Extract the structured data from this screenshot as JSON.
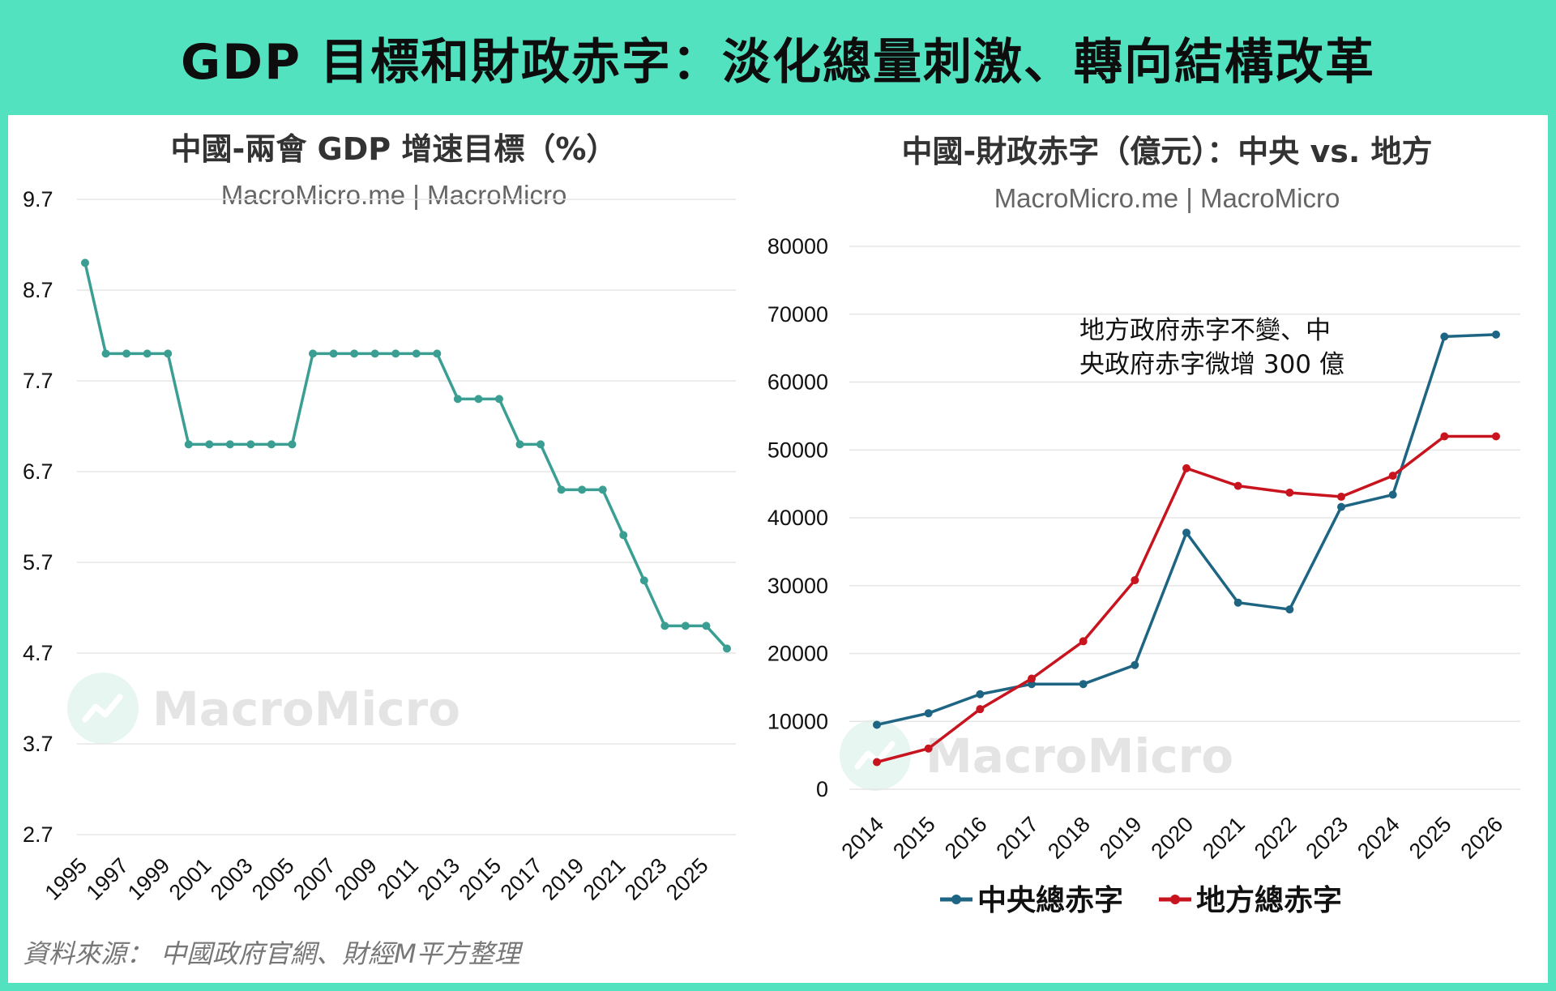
{
  "header": {
    "title": "GDP 目標和財政赤字：淡化總量刺激、轉向結構改革"
  },
  "charts": {
    "left": {
      "title": "中國-兩會 GDP 增速目標（%）",
      "subtitle": "MacroMicro.me | MacroMicro"
    },
    "right": {
      "title": "中國-財政赤字（億元）：中央 vs. 地方",
      "subtitle": "MacroMicro.me | MacroMicro"
    }
  },
  "watermark": "MacroMicro",
  "source": "資料來源： 中國政府官網、財經M平方整理",
  "colors": {
    "frame": "#52e2c0",
    "gdp_line": "#3a9e92",
    "central": "#1e6583",
    "local": "#c8141e",
    "grid": "#e6e6e6"
  },
  "chart_data": [
    {
      "type": "line",
      "title": "中國-兩會 GDP 增速目標（%）",
      "x": [
        1995,
        1996,
        1997,
        1998,
        1999,
        2000,
        2001,
        2002,
        2003,
        2004,
        2005,
        2006,
        2007,
        2008,
        2009,
        2010,
        2011,
        2012,
        2013,
        2014,
        2015,
        2016,
        2017,
        2018,
        2019,
        2020,
        2021,
        2022,
        2023,
        2024,
        2025,
        2026
      ],
      "x_tick_labels": [
        "1995",
        "1997",
        "1999",
        "2001",
        "2003",
        "2005",
        "2007",
        "2009",
        "2011",
        "2013",
        "2015",
        "2017",
        "2019",
        "2021",
        "2023",
        "2025"
      ],
      "series": [
        {
          "values": [
            9,
            8,
            8,
            8,
            8,
            7,
            7,
            7,
            7,
            7,
            7,
            8,
            8,
            8,
            8,
            8,
            8,
            8,
            7.5,
            7.5,
            7.5,
            7,
            7,
            6.5,
            6.5,
            6.5,
            6,
            5.5,
            5,
            5,
            5,
            4.75
          ]
        }
      ],
      "yticks": [
        "9.7",
        "8.7",
        "7.7",
        "6.7",
        "5.7",
        "4.7",
        "3.7",
        "2.7"
      ],
      "ylim": [
        2.7,
        9.7
      ],
      "grid": true
    },
    {
      "type": "line",
      "title": "中國-財政赤字（億元）：中央 vs. 地方",
      "x": [
        2014,
        2015,
        2016,
        2017,
        2018,
        2019,
        2020,
        2021,
        2022,
        2023,
        2024,
        2025,
        2026
      ],
      "x_tick_labels": [
        "2014",
        "2015",
        "2016",
        "2017",
        "2018",
        "2019",
        "2020",
        "2021",
        "2022",
        "2023",
        "2024",
        "2025",
        "2026"
      ],
      "series": [
        {
          "name": "中央總赤字",
          "color": "#1e6583",
          "values": [
            9500,
            11200,
            14000,
            15500,
            15500,
            18300,
            37800,
            27500,
            26500,
            41600,
            43400,
            66700,
            67000
          ]
        },
        {
          "name": "地方總赤字",
          "color": "#c8141e",
          "values": [
            4000,
            6000,
            11800,
            16300,
            21800,
            30800,
            47300,
            44700,
            43700,
            43100,
            46200,
            52000,
            52000
          ]
        }
      ],
      "yticks": [
        "80000",
        "70000",
        "60000",
        "50000",
        "40000",
        "30000",
        "20000",
        "10000",
        "0"
      ],
      "ylim": [
        0,
        80000
      ],
      "grid": true,
      "legend_position": "bottom",
      "annotation": {
        "line1": "地方政府赤字不變、中",
        "line2": "央政府赤字微增 300 億"
      }
    }
  ]
}
